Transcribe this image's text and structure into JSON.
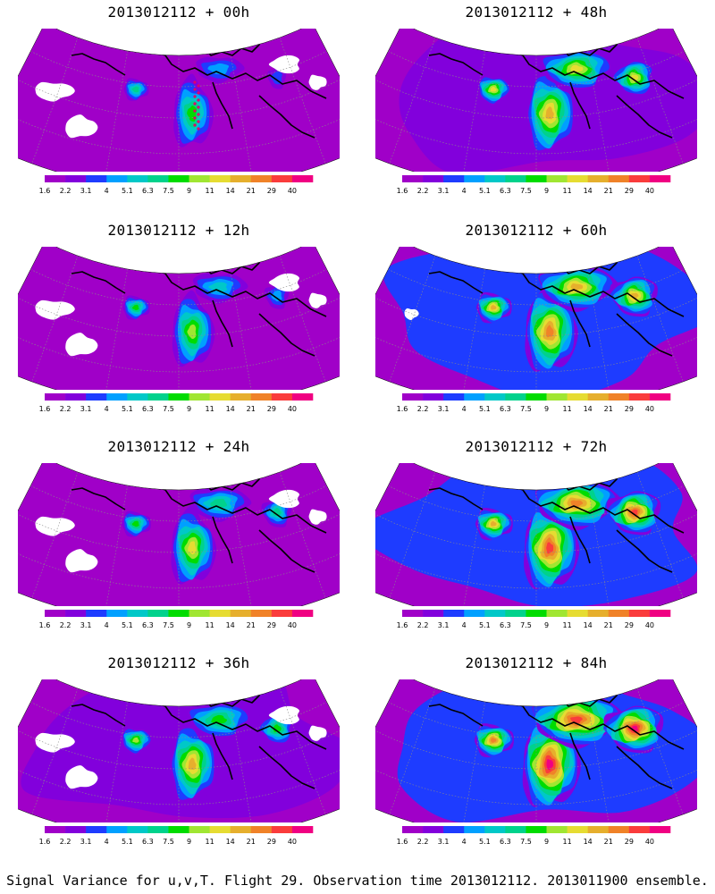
{
  "footer": "Signal Variance for u,v,T. Flight 29. Observation time 2013012112. 2013011900 ensemble.",
  "colorbar": {
    "labels": [
      "1.6",
      "2.2",
      "3.1",
      "4",
      "5.1",
      "6.3",
      "7.5",
      "9",
      "11",
      "14",
      "21",
      "29",
      "40"
    ],
    "colors": [
      "#a000c8",
      "#8200dc",
      "#1e3cff",
      "#00a0ff",
      "#00c8c8",
      "#00d28c",
      "#00dc00",
      "#a0e632",
      "#e6dc32",
      "#e6af2d",
      "#f08228",
      "#fa3c3c",
      "#f00082"
    ]
  },
  "panels": [
    {
      "title": "2013012112 + 00h",
      "lead": 0
    },
    {
      "title": "2013012112 + 48h",
      "lead": 48
    },
    {
      "title": "2013012112 + 12h",
      "lead": 12
    },
    {
      "title": "2013012112 + 60h",
      "lead": 60
    },
    {
      "title": "2013012112 + 24h",
      "lead": 24
    },
    {
      "title": "2013012112 + 72h",
      "lead": 72
    },
    {
      "title": "2013012112 + 36h",
      "lead": 36
    },
    {
      "title": "2013012112 + 84h",
      "lead": 84
    }
  ]
}
